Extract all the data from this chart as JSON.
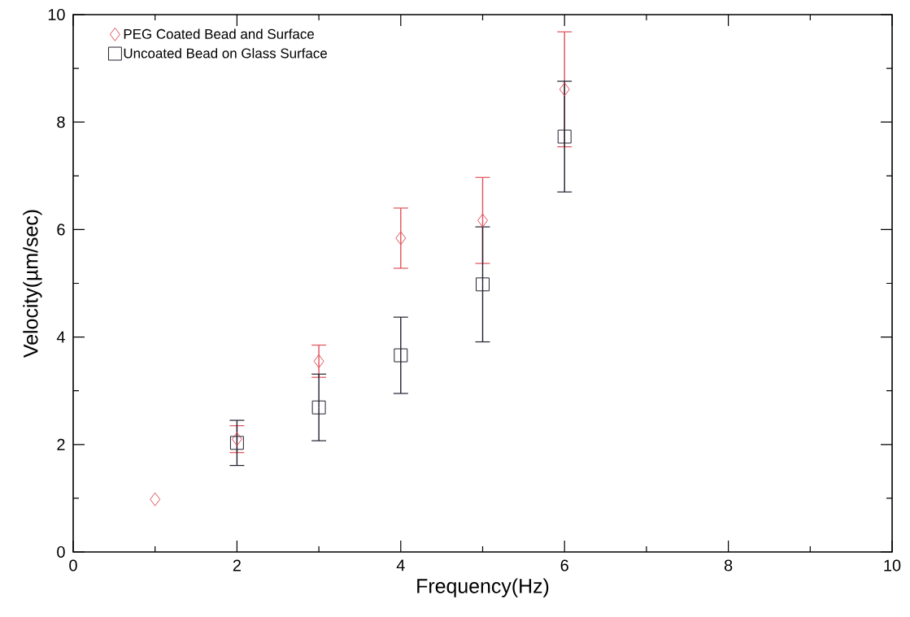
{
  "chart_data": {
    "type": "scatter",
    "xlabel": "Frequency(Hz)",
    "ylabel": "Velocity(µm/sec)",
    "xlim": [
      0,
      10
    ],
    "ylim": [
      0,
      10
    ],
    "xticks": [
      0,
      2,
      4,
      6,
      8,
      10
    ],
    "yticks": [
      0,
      2,
      4,
      6,
      8,
      10
    ],
    "grid": false,
    "legend": "top left",
    "series": [
      {
        "name": "PEG Coated Bead and Surface",
        "color": "#e0505a",
        "marker": "diamond",
        "x": [
          1,
          2,
          3,
          4,
          5,
          6
        ],
        "values": [
          0.98,
          2.1,
          3.55,
          5.84,
          6.17,
          8.61
        ],
        "errors": [
          null,
          0.25,
          0.3,
          0.56,
          0.8,
          1.07
        ]
      },
      {
        "name": "Uncoated Bead on Glass Surface",
        "color": "#202030",
        "marker": "square",
        "x": [
          2,
          3,
          4,
          5,
          6
        ],
        "values": [
          2.03,
          2.69,
          3.66,
          4.98,
          7.73
        ],
        "errors": [
          0.42,
          0.62,
          0.71,
          1.07,
          1.03
        ]
      }
    ]
  }
}
